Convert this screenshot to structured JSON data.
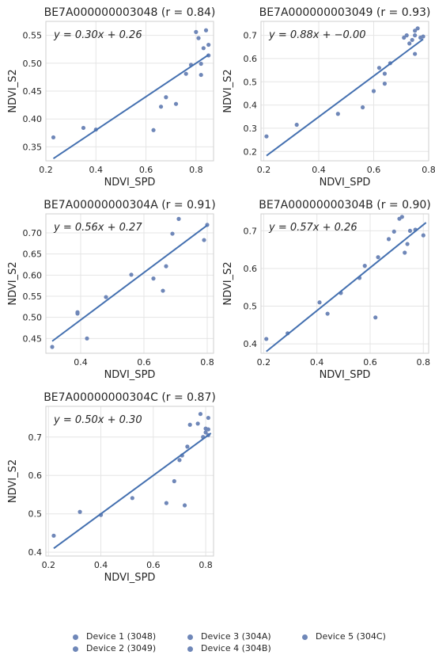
{
  "colors": {
    "point": "#6f87b8",
    "line": "#4470b0",
    "grid": "#e5e5e5",
    "frame": "#cfcfcf"
  },
  "chart_data": [
    {
      "type": "scatter",
      "title": "BE7A000000003048 (r = 0.84)",
      "equation": "y = 0.30x + 0.26",
      "xlabel": "NDVI_SPD",
      "ylabel": "NDVI_S2",
      "xlim": [
        0.2,
        0.87
      ],
      "ylim": [
        0.325,
        0.575
      ],
      "xticks": [
        0.2,
        0.4,
        0.6,
        0.8
      ],
      "yticks": [
        0.35,
        0.4,
        0.45,
        0.5,
        0.55
      ],
      "xticklabels": [
        "0.2",
        "0.4",
        "0.6",
        "0.8"
      ],
      "yticklabels": [
        "0.35",
        "0.40",
        "0.45",
        "0.50",
        "0.55"
      ],
      "fit": {
        "slope": 0.3,
        "intercept": 0.26,
        "x_range": [
          0.23,
          0.85
        ]
      },
      "points": [
        [
          0.23,
          0.367
        ],
        [
          0.35,
          0.384
        ],
        [
          0.4,
          0.381
        ],
        [
          0.63,
          0.38
        ],
        [
          0.66,
          0.422
        ],
        [
          0.68,
          0.439
        ],
        [
          0.72,
          0.427
        ],
        [
          0.76,
          0.481
        ],
        [
          0.78,
          0.497
        ],
        [
          0.8,
          0.556
        ],
        [
          0.81,
          0.545
        ],
        [
          0.82,
          0.499
        ],
        [
          0.82,
          0.479
        ],
        [
          0.83,
          0.527
        ],
        [
          0.84,
          0.559
        ],
        [
          0.85,
          0.533
        ],
        [
          0.85,
          0.514
        ]
      ]
    },
    {
      "type": "scatter",
      "title": "BE7A000000003049 (r = 0.93)",
      "equation": "y = 0.88x + −0.00",
      "xlabel": "NDVI_SPD",
      "ylabel": "NDVI_S2",
      "xlim": [
        0.19,
        0.8
      ],
      "ylim": [
        0.16,
        0.76
      ],
      "xticks": [
        0.2,
        0.4,
        0.6,
        0.8
      ],
      "yticks": [
        0.2,
        0.3,
        0.4,
        0.5,
        0.6,
        0.7
      ],
      "xticklabels": [
        "0.2",
        "0.4",
        "0.6",
        "0.8"
      ],
      "yticklabels": [
        "0.2",
        "0.3",
        "0.4",
        "0.5",
        "0.6",
        "0.7"
      ],
      "fit": {
        "slope": 0.88,
        "intercept": -0.003,
        "x_range": [
          0.21,
          0.78
        ]
      },
      "points": [
        [
          0.21,
          0.265
        ],
        [
          0.32,
          0.315
        ],
        [
          0.47,
          0.362
        ],
        [
          0.56,
          0.39
        ],
        [
          0.6,
          0.46
        ],
        [
          0.62,
          0.56
        ],
        [
          0.64,
          0.535
        ],
        [
          0.64,
          0.492
        ],
        [
          0.66,
          0.58
        ],
        [
          0.71,
          0.69
        ],
        [
          0.72,
          0.7
        ],
        [
          0.73,
          0.665
        ],
        [
          0.74,
          0.68
        ],
        [
          0.75,
          0.7
        ],
        [
          0.75,
          0.72
        ],
        [
          0.75,
          0.62
        ],
        [
          0.76,
          0.73
        ],
        [
          0.77,
          0.69
        ],
        [
          0.78,
          0.695
        ]
      ]
    },
    {
      "type": "scatter",
      "title": "BE7A00000000304A (r = 0.91)",
      "equation": "y = 0.56x + 0.27",
      "xlabel": "NDVI_SPD",
      "ylabel": "NDVI_S2",
      "xlim": [
        0.29,
        0.82
      ],
      "ylim": [
        0.415,
        0.745
      ],
      "xticks": [
        0.4,
        0.6,
        0.8
      ],
      "yticks": [
        0.45,
        0.5,
        0.55,
        0.6,
        0.65,
        0.7
      ],
      "xticklabels": [
        "0.4",
        "0.6",
        "0.8"
      ],
      "yticklabels": [
        "0.45",
        "0.50",
        "0.55",
        "0.60",
        "0.65",
        "0.70"
      ],
      "fit": {
        "slope": 0.56,
        "intercept": 0.27,
        "x_range": [
          0.31,
          0.8
        ]
      },
      "points": [
        [
          0.31,
          0.43
        ],
        [
          0.39,
          0.509
        ],
        [
          0.39,
          0.512
        ],
        [
          0.42,
          0.45
        ],
        [
          0.48,
          0.548
        ],
        [
          0.56,
          0.601
        ],
        [
          0.63,
          0.592
        ],
        [
          0.66,
          0.563
        ],
        [
          0.67,
          0.621
        ],
        [
          0.69,
          0.698
        ],
        [
          0.71,
          0.733
        ],
        [
          0.79,
          0.683
        ],
        [
          0.8,
          0.719
        ]
      ]
    },
    {
      "type": "scatter",
      "title": "BE7A00000000304B (r = 0.90)",
      "equation": "y = 0.57x + 0.26",
      "xlabel": "NDVI_SPD",
      "ylabel": "NDVI_S2",
      "xlim": [
        0.19,
        0.82
      ],
      "ylim": [
        0.375,
        0.745
      ],
      "xticks": [
        0.2,
        0.4,
        0.6,
        0.8
      ],
      "yticks": [
        0.4,
        0.5,
        0.6,
        0.7
      ],
      "xticklabels": [
        "0.2",
        "0.4",
        "0.6",
        "0.8"
      ],
      "yticklabels": [
        "0.4",
        "0.5",
        "0.6",
        "0.7"
      ],
      "fit": {
        "slope": 0.57,
        "intercept": 0.26,
        "x_range": [
          0.21,
          0.81
        ]
      },
      "points": [
        [
          0.21,
          0.413
        ],
        [
          0.29,
          0.428
        ],
        [
          0.41,
          0.51
        ],
        [
          0.44,
          0.48
        ],
        [
          0.49,
          0.535
        ],
        [
          0.56,
          0.575
        ],
        [
          0.58,
          0.607
        ],
        [
          0.62,
          0.47
        ],
        [
          0.63,
          0.63
        ],
        [
          0.67,
          0.678
        ],
        [
          0.69,
          0.698
        ],
        [
          0.71,
          0.732
        ],
        [
          0.72,
          0.737
        ],
        [
          0.73,
          0.642
        ],
        [
          0.74,
          0.665
        ],
        [
          0.75,
          0.7
        ],
        [
          0.77,
          0.703
        ],
        [
          0.8,
          0.688
        ]
      ]
    },
    {
      "type": "scatter",
      "title": "BE7A00000000304C (r = 0.87)",
      "equation": "y = 0.50x + 0.30",
      "xlabel": "NDVI_SPD",
      "ylabel": "NDVI_S2",
      "xlim": [
        0.19,
        0.83
      ],
      "ylim": [
        0.39,
        0.78
      ],
      "xticks": [
        0.2,
        0.4,
        0.6,
        0.8
      ],
      "yticks": [
        0.4,
        0.5,
        0.6,
        0.7
      ],
      "xticklabels": [
        "0.2",
        "0.4",
        "0.6",
        "0.8"
      ],
      "yticklabels": [
        "0.4",
        "0.5",
        "0.6",
        "0.7"
      ],
      "fit": {
        "slope": 0.5,
        "intercept": 0.3,
        "x_range": [
          0.22,
          0.82
        ]
      },
      "points": [
        [
          0.22,
          0.443
        ],
        [
          0.32,
          0.505
        ],
        [
          0.4,
          0.497
        ],
        [
          0.52,
          0.541
        ],
        [
          0.65,
          0.528
        ],
        [
          0.68,
          0.585
        ],
        [
          0.7,
          0.64
        ],
        [
          0.71,
          0.652
        ],
        [
          0.72,
          0.522
        ],
        [
          0.73,
          0.675
        ],
        [
          0.74,
          0.732
        ],
        [
          0.77,
          0.735
        ],
        [
          0.78,
          0.76
        ],
        [
          0.79,
          0.7
        ],
        [
          0.8,
          0.722
        ],
        [
          0.8,
          0.712
        ],
        [
          0.81,
          0.75
        ],
        [
          0.81,
          0.72
        ],
        [
          0.81,
          0.705
        ]
      ]
    }
  ],
  "legend": {
    "items": [
      "Device 1 (3048)",
      "Device 2 (3049)",
      "Device 3 (304A)",
      "Device 4 (304B)",
      "Device 5 (304C)"
    ]
  }
}
